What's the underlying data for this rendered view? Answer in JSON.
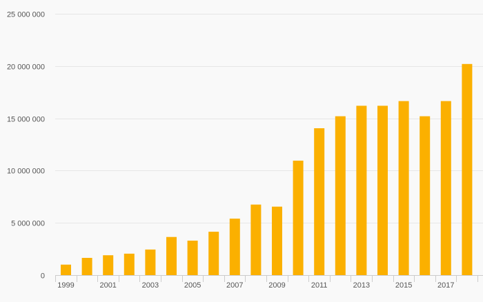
{
  "chart_data": {
    "type": "bar",
    "categories": [
      "1999",
      "2000",
      "2001",
      "2002",
      "2003",
      "2004",
      "2005",
      "2006",
      "2007",
      "2008",
      "2009",
      "2010",
      "2011",
      "2012",
      "2013",
      "2014",
      "2015",
      "2016",
      "2017",
      "2018"
    ],
    "x_tick_labels": [
      "1999",
      "2001",
      "2003",
      "2005",
      "2007",
      "2009",
      "2011",
      "2013",
      "2015",
      "2017"
    ],
    "values": [
      1000000,
      1650000,
      1900000,
      2050000,
      2450000,
      3650000,
      3300000,
      4150000,
      5400000,
      6750000,
      6550000,
      10950000,
      14050000,
      15200000,
      16200000,
      16200000,
      16650000,
      15200000,
      16650000,
      20200000
    ],
    "y_tick_labels": [
      "0",
      "5 000 000",
      "10 000 000",
      "15 000 000",
      "20 000 000",
      "25 000 000"
    ],
    "ylim": [
      0,
      25000000
    ],
    "y_ticks": [
      0,
      5000000,
      10000000,
      15000000,
      20000000,
      25000000
    ],
    "title": "",
    "xlabel": "",
    "ylabel": "",
    "grid": true,
    "bar_color": "#fbb000",
    "grid_color": "#e6e6e6",
    "axis_color": "#cccccc",
    "background_color": "#f9f9f9"
  }
}
